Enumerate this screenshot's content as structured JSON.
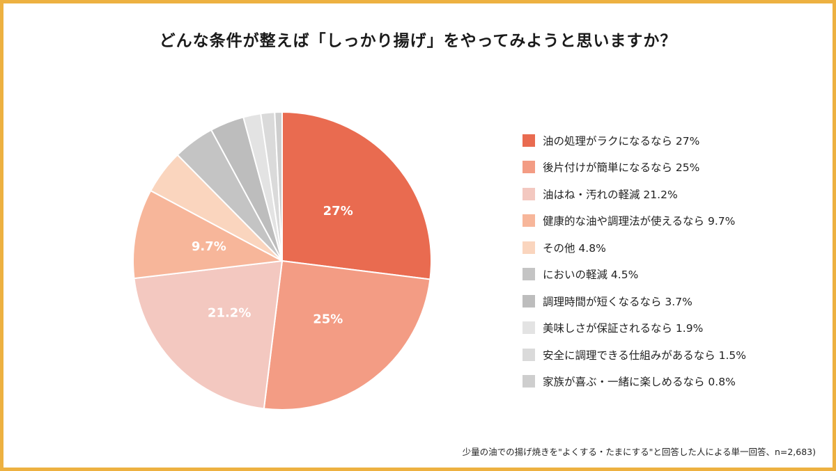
{
  "title": "どんな条件が整えば「しっかり揚げ」をやってみようと思いますか？",
  "footnote": "少量の油での揚げ焼きを\"よくする・たまにする\"と回答した人による単一回答、n=2,683)",
  "colors": {
    "frame": "#EDB141"
  },
  "chart_data": {
    "type": "pie",
    "title": "どんな条件が整えば「しっかり揚げ」をやってみようと思いますか？",
    "unit": "%",
    "start": "12 o'clock, clockwise",
    "slices": [
      {
        "name": "油の処理がラクになるなら",
        "value": 27,
        "legend": "油の処理がラクになるなら 27%",
        "label": "27%",
        "color": "#E96B50"
      },
      {
        "name": "後片付けが簡単になるなら",
        "value": 25,
        "legend": "後片付けが簡単になるなら 25%",
        "label": "25%",
        "color": "#F39C84"
      },
      {
        "name": "油はね・汚れの軽減",
        "value": 21.2,
        "legend": "油はね・汚れの軽減 21.2%",
        "label": "21.2%",
        "color": "#F3C8C0"
      },
      {
        "name": "健康的な油や調理法が使えるなら",
        "value": 9.7,
        "legend": "健康的な油や調理法が使えるなら 9.7%",
        "label": "9.7%",
        "color": "#F7B69A"
      },
      {
        "name": "その他",
        "value": 4.8,
        "legend": "その他 4.8%",
        "label": "",
        "color": "#FAD5BE"
      },
      {
        "name": "においの軽減",
        "value": 4.5,
        "legend": "においの軽減 4.5%",
        "label": "",
        "color": "#C4C4C4"
      },
      {
        "name": "調理時間が短くなるなら",
        "value": 3.7,
        "legend": "調理時間が短くなるなら 3.7%",
        "label": "",
        "color": "#BDBDBD"
      },
      {
        "name": "美味しさが保証されるなら",
        "value": 1.9,
        "legend": "美味しさが保証されるなら 1.9%",
        "label": "",
        "color": "#E3E3E3"
      },
      {
        "name": "安全に調理できる仕組みがあるなら",
        "value": 1.5,
        "legend": "安全に調理できる仕組みがあるなら 1.5%",
        "label": "",
        "color": "#DADADA"
      },
      {
        "name": "家族が喜ぶ・一緒に楽しめるなら",
        "value": 0.8,
        "legend": "家族が喜ぶ・一緒に楽しめるなら 0.8%",
        "label": "",
        "color": "#CECECE"
      }
    ]
  }
}
